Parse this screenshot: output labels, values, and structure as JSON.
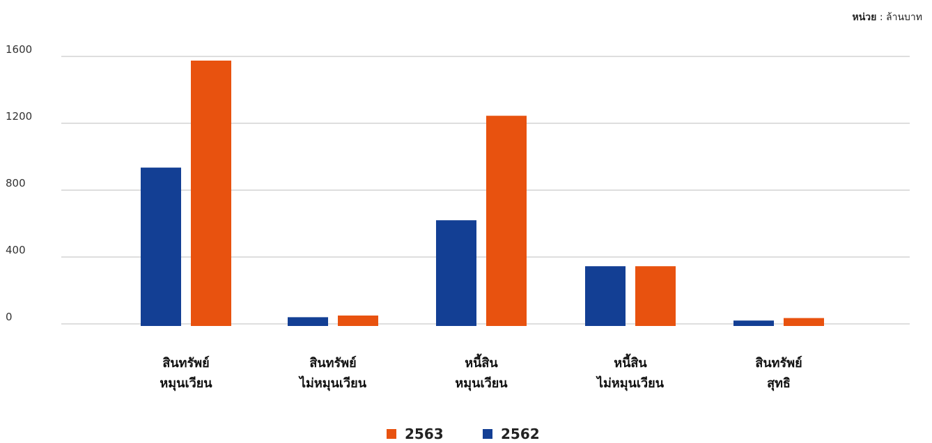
{
  "unit_note": {
    "label": "หน่วย",
    "separator": " : ",
    "value": "ล้านบาท"
  },
  "colors": {
    "series_2563": "#E8520F",
    "series_2562": "#133F94",
    "grid": "#bdbdbd"
  },
  "chart_data": {
    "type": "bar",
    "title": "",
    "xlabel": "",
    "ylabel": "",
    "ylim": [
      0,
      1600
    ],
    "yticks": [
      0,
      400,
      800,
      1200,
      1600
    ],
    "grid": true,
    "legend_position": "bottom",
    "categories": [
      [
        "สินทรัพย์",
        "หมุนเวียน"
      ],
      [
        "สินทรัพย์",
        "ไม่หมุนเวียน"
      ],
      [
        "หนี้สิน",
        "หมุนเวียน"
      ],
      [
        "หนี้สิน",
        "ไม่หมุนเวียน"
      ],
      [
        "สินทรัพย์",
        "สุทธิ"
      ]
    ],
    "series": [
      {
        "name": "2562",
        "color": "#133F94",
        "values": [
          935,
          40,
          620,
          345,
          20
        ]
      },
      {
        "name": "2563",
        "color": "#E8520F",
        "values": [
          1575,
          50,
          1245,
          345,
          35
        ]
      }
    ],
    "legend_order": [
      "2563",
      "2562"
    ]
  }
}
